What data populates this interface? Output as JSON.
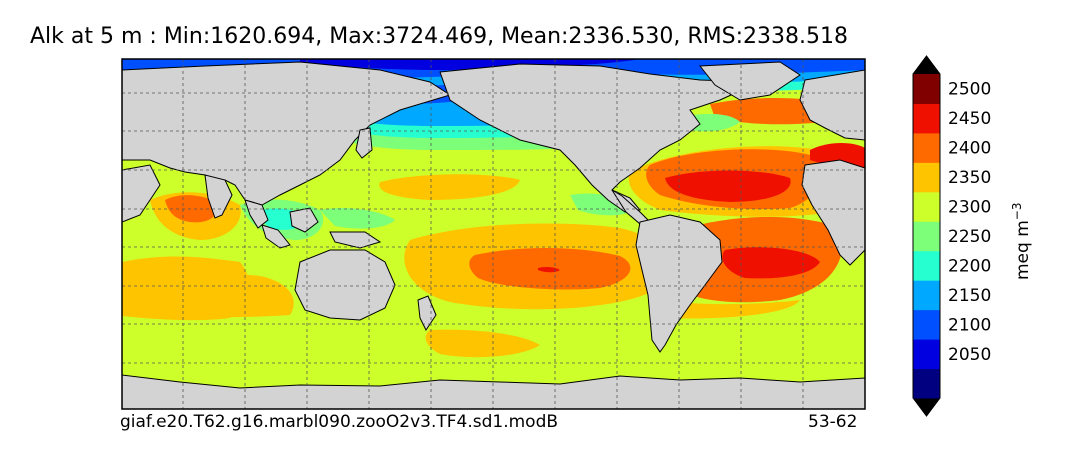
{
  "title": "Alk at 5 m : Min:1620.694, Max:3724.469, Mean:2336.530, RMS:2338.518",
  "caption_left": "giaf.e20.T62.g16.marbl090.zooO2v3.TF4.sd1.modB",
  "caption_right": "53-62",
  "colorbar": {
    "unit_base": "meq m",
    "unit_exp": "−3",
    "levels": [
      {
        "label": "",
        "color": "#000080"
      },
      {
        "label": "2050",
        "color": "#0000e0"
      },
      {
        "label": "2100",
        "color": "#0050ff"
      },
      {
        "label": "2150",
        "color": "#00a8ff"
      },
      {
        "label": "2200",
        "color": "#26ffd0"
      },
      {
        "label": "2250",
        "color": "#7dff79"
      },
      {
        "label": "2300",
        "color": "#cdff2a"
      },
      {
        "label": "2350",
        "color": "#ffc400"
      },
      {
        "label": "2400",
        "color": "#ff6a00"
      },
      {
        "label": "2450",
        "color": "#f01000"
      },
      {
        "label": "2500",
        "color": "#800000"
      }
    ],
    "extend_low_color": "#000000",
    "extend_high_color": "#000000"
  },
  "colors": {
    "land": "#d3d3d3",
    "ocean_background": "#cdff2a",
    "grid": "#555555"
  }
}
